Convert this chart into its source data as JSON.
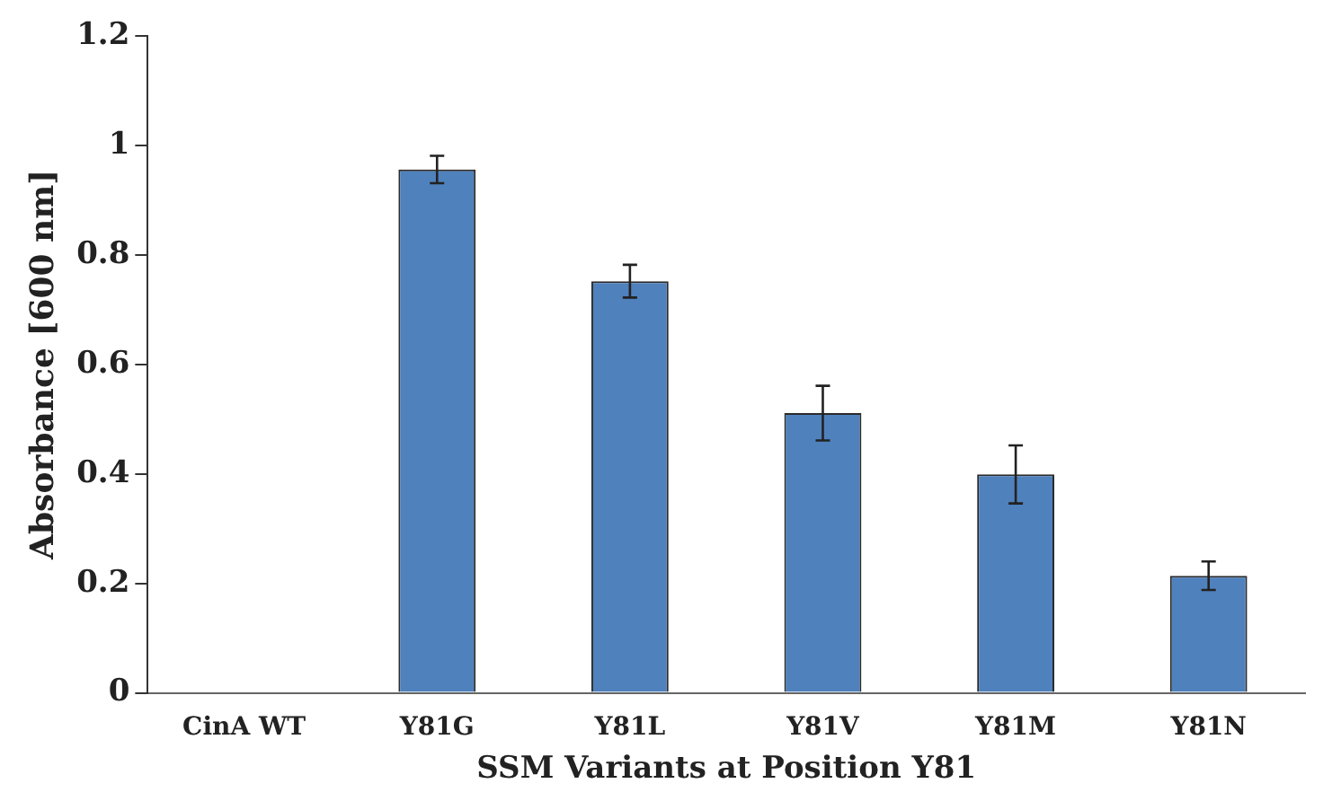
{
  "chart_data": {
    "type": "bar",
    "xlabel": "SSM Variants at Position Y81",
    "ylabel": "Absorbance [600 nm]",
    "categories": [
      "CinA WT",
      "Y81G",
      "Y81L",
      "Y81V",
      "Y81M",
      "Y81N"
    ],
    "values": [
      0,
      0.956,
      0.752,
      0.511,
      0.399,
      0.214
    ],
    "errors": [
      null,
      0.025,
      0.03,
      0.05,
      0.053,
      0.026
    ],
    "color": "#4f81bd",
    "ylim": [
      0,
      1.2
    ],
    "yticks": [
      0,
      0.2,
      0.4,
      0.6,
      0.8,
      1,
      1.2
    ],
    "grid": false,
    "legend": false
  }
}
